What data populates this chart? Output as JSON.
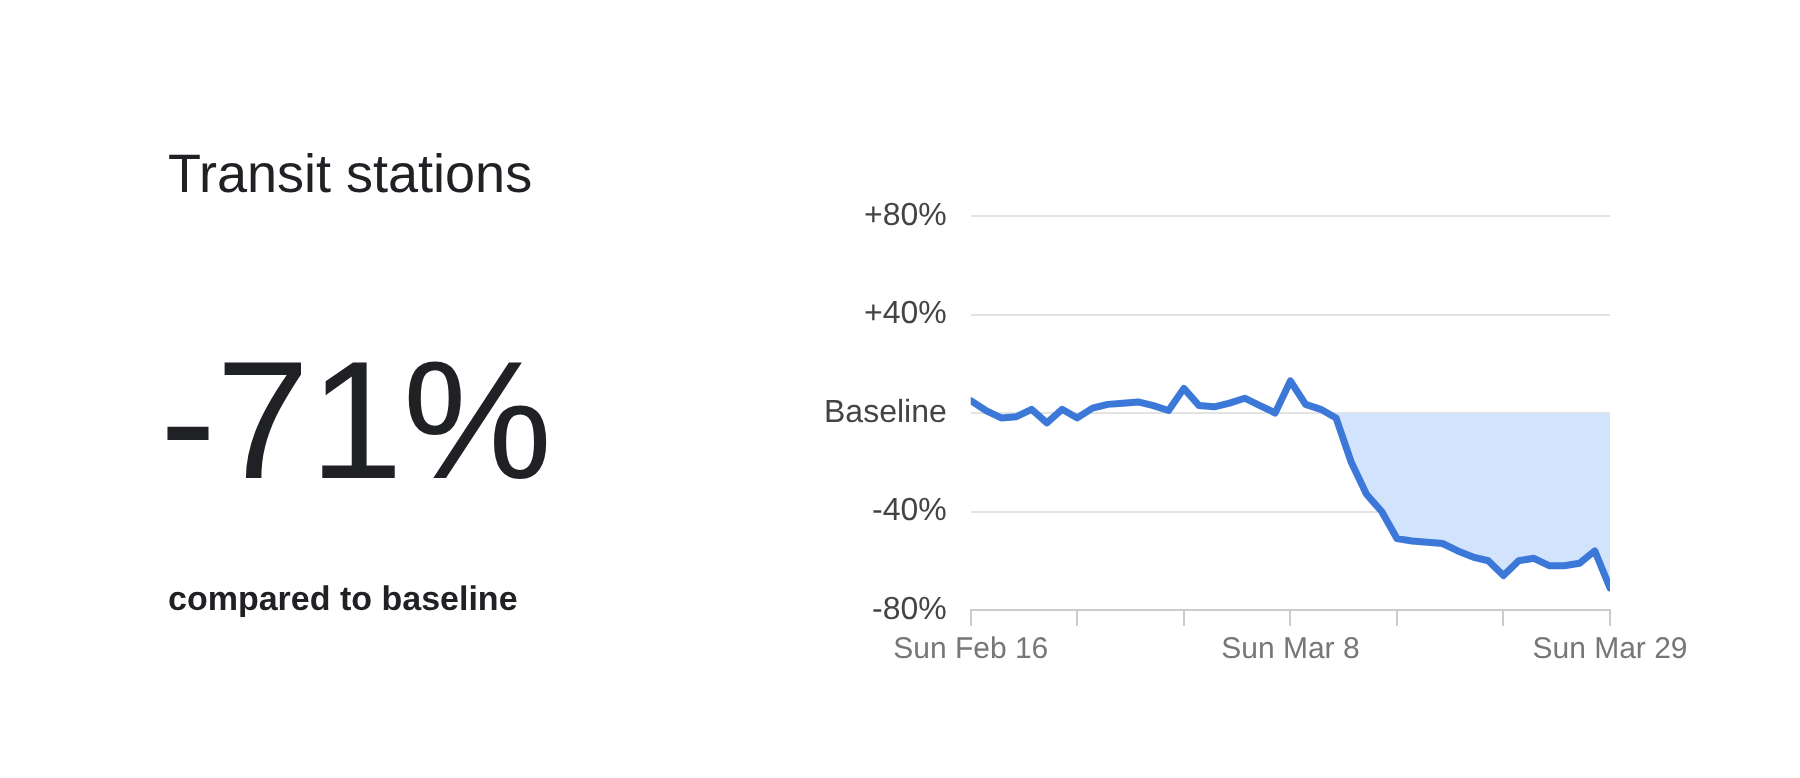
{
  "chart_data": {
    "type": "line",
    "title": "Transit stations",
    "annotations": [
      "-71%",
      "compared to baseline"
    ],
    "x": [
      "--02-16",
      "--02-17",
      "--02-18",
      "--02-19",
      "--02-20",
      "--02-21",
      "--02-22",
      "--02-23",
      "--02-24",
      "--02-25",
      "--02-26",
      "--02-27",
      "--02-28",
      "--02-29",
      "--03-01",
      "--03-02",
      "--03-03",
      "--03-04",
      "--03-05",
      "--03-06",
      "--03-07",
      "--03-08",
      "--03-09",
      "--03-10",
      "--03-11",
      "--03-12",
      "--03-13",
      "--03-14",
      "--03-15",
      "--03-16",
      "--03-17",
      "--03-18",
      "--03-19",
      "--03-20",
      "--03-21",
      "--03-22",
      "--03-23",
      "--03-24",
      "--03-25",
      "--03-26",
      "--03-27",
      "--03-28",
      "--03-29"
    ],
    "series": [
      {
        "color": "#3c78d8",
        "values": [
          5,
          1,
          -2,
          -1.5,
          1.5,
          -4,
          1.5,
          -2,
          2,
          3.5,
          4,
          4.5,
          3,
          1,
          10,
          3,
          2.5,
          4,
          6,
          3,
          0,
          13,
          3.5,
          1.5,
          -2,
          -20,
          -33,
          -40,
          -51,
          -52,
          -52.5,
          -53,
          -56,
          -58.5,
          -60,
          -66,
          -60,
          -59,
          -62,
          -62,
          -61,
          -56,
          -71
        ]
      },
      {
        "type": "area",
        "color": "#d2e3fc",
        "values": [
          null,
          null,
          null,
          null,
          null,
          null,
          null,
          null,
          null,
          null,
          null,
          null,
          null,
          null,
          null,
          null,
          null,
          null,
          null,
          null,
          null,
          null,
          null,
          null,
          -2,
          -20,
          -33,
          -40,
          -51,
          -52,
          -52.5,
          -53,
          -56,
          -58.5,
          -60,
          -66,
          -60,
          -59,
          -62,
          -62,
          -61,
          -56,
          -71
        ]
      }
    ],
    "xlim": [
      "--02-16",
      "--03-29"
    ],
    "xticks": [
      {
        "value": "--02-16",
        "label": "Sun Feb 16"
      },
      {
        "value": "--02-23",
        "label": null
      },
      {
        "value": "--03-01",
        "label": null
      },
      {
        "value": "--03-08",
        "label": "Sun Mar 8"
      },
      {
        "value": "--03-15",
        "label": null
      },
      {
        "value": "--03-22",
        "label": null
      },
      {
        "value": "--03-29",
        "label": "Sun Mar 29"
      }
    ],
    "ylim": [
      -80,
      80
    ],
    "yticks": [
      {
        "value": 80,
        "label": "+80%"
      },
      {
        "value": 40,
        "label": "+40%"
      },
      {
        "value": 0,
        "label": "Baseline"
      },
      {
        "value": -40,
        "label": "-40%"
      },
      {
        "value": -80,
        "label": "-80%"
      }
    ],
    "grid": "y",
    "legend": false,
    "marker": "none",
    "line_style": "solid"
  }
}
